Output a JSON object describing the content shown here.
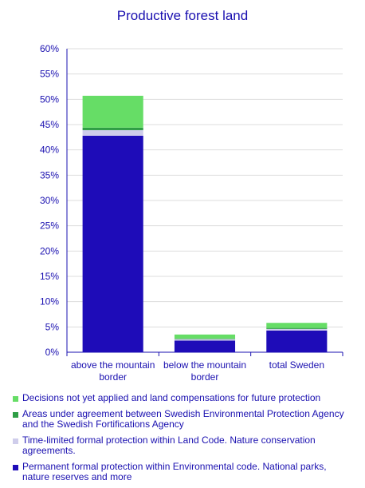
{
  "chart_data": {
    "type": "bar",
    "stacked": true,
    "title": "Productive forest land",
    "categories": [
      "above the mountain border",
      "below the mountain border",
      "total Sweden"
    ],
    "category_lines": [
      [
        "above the mountain",
        "border"
      ],
      [
        "below the mountain",
        "border"
      ],
      [
        "total Sweden"
      ]
    ],
    "ylim": [
      0,
      60
    ],
    "yticks": [
      0,
      5,
      10,
      15,
      20,
      25,
      30,
      35,
      40,
      45,
      50,
      55,
      60
    ],
    "ytick_labels": [
      "0%",
      "5%",
      "10%",
      "15%",
      "20%",
      "25%",
      "30%",
      "35%",
      "40%",
      "45%",
      "50%",
      "55%",
      "60%"
    ],
    "grid": true,
    "legend_position": "bottom",
    "series": [
      {
        "name": "Permanent formal protection within Environmental code. National parks, nature reserves and more",
        "color": "#1e0cb8",
        "values": [
          42.8,
          2.3,
          4.3
        ]
      },
      {
        "name": "Time-limited formal protection within Land Code. Nature conservation agreements.",
        "color": "#cfcdeb",
        "values": [
          1.1,
          0.3,
          0.3
        ]
      },
      {
        "name": "Areas under agreement between Swedish Environmental Protection Agency and the Swedish Fortifications Agency",
        "color": "#2e9e45",
        "values": [
          0.5,
          0.1,
          0.2
        ]
      },
      {
        "name": "Decisions not yet applied and land compensations for future protection",
        "color": "#66dd66",
        "values": [
          6.3,
          0.8,
          1.0
        ]
      }
    ],
    "legend_lines": [
      {
        "color": "#66dd66",
        "lines": [
          "Decisions not yet applied and land compensations for future protection"
        ]
      },
      {
        "color": "#2e9e45",
        "lines": [
          "Areas under agreement between Swedish Environmental Protection Agency",
          "and the Swedish Fortifications Agency"
        ]
      },
      {
        "color": "#cfcdeb",
        "lines": [
          "Time-limited formal protection within Land Code. Nature conservation",
          "agreements."
        ]
      },
      {
        "color": "#1e0cb8",
        "lines": [
          "Permanent formal protection within Environmental code. National parks,",
          "nature reserves and more"
        ]
      }
    ]
  }
}
